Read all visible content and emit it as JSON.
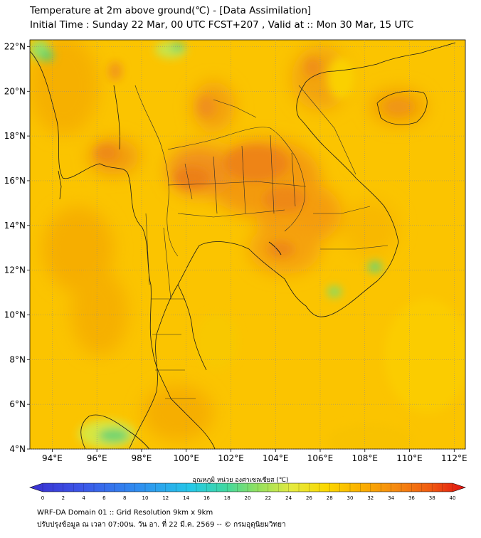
{
  "title": {
    "line1": "Temperature at 2m above ground(℃) - [Data Assimilation]",
    "line2": "Initial Time : Sunday 22 Mar, 00 UTC FCST+207 , Valid at :: Mon 30 Mar, 15 UTC"
  },
  "map": {
    "lon_range": [
      93,
      112.5
    ],
    "lat_range": [
      4,
      22.3
    ],
    "lat_labels": [
      "4°N",
      "6°N",
      "8°N",
      "10°N",
      "12°N",
      "14°N",
      "16°N",
      "18°N",
      "20°N",
      "22°N"
    ],
    "lat_values": [
      4,
      6,
      8,
      10,
      12,
      14,
      16,
      18,
      20,
      22
    ],
    "lon_labels": [
      "94°E",
      "96°E",
      "98°E",
      "100°E",
      "102°E",
      "104°E",
      "106°E",
      "108°E",
      "110°E",
      "112°E"
    ],
    "lon_values": [
      94,
      96,
      98,
      100,
      102,
      104,
      106,
      108,
      110,
      112
    ],
    "field": "2 m air temperature (°C)",
    "colors": {
      "background_field": "#fbc400",
      "hot": "#f07a10",
      "warm": "#f5a000",
      "cool": "#e4e838",
      "cold": "#5fd06a"
    }
  },
  "colorbar": {
    "title": "อุณหภูมิ หน่วย องศาเซลเซียส (℃)",
    "min": 0,
    "max": 40,
    "step": 1,
    "tick_labels": [
      "0",
      "2",
      "4",
      "6",
      "8",
      "10",
      "12",
      "14",
      "16",
      "18",
      "20",
      "22",
      "24",
      "26",
      "28",
      "30",
      "32",
      "34",
      "36",
      "38",
      "40"
    ]
  },
  "footer": {
    "line1": "WRF-DA Domain 01 :: Grid Resolution 9km x 9km",
    "line2": "ปรับปรุงข้อมูล ณ เวลา 07:00น. วัน อา. ที่ 22 มี.ค. 2569 -- © กรมอุตุนิยมวิทยา"
  }
}
